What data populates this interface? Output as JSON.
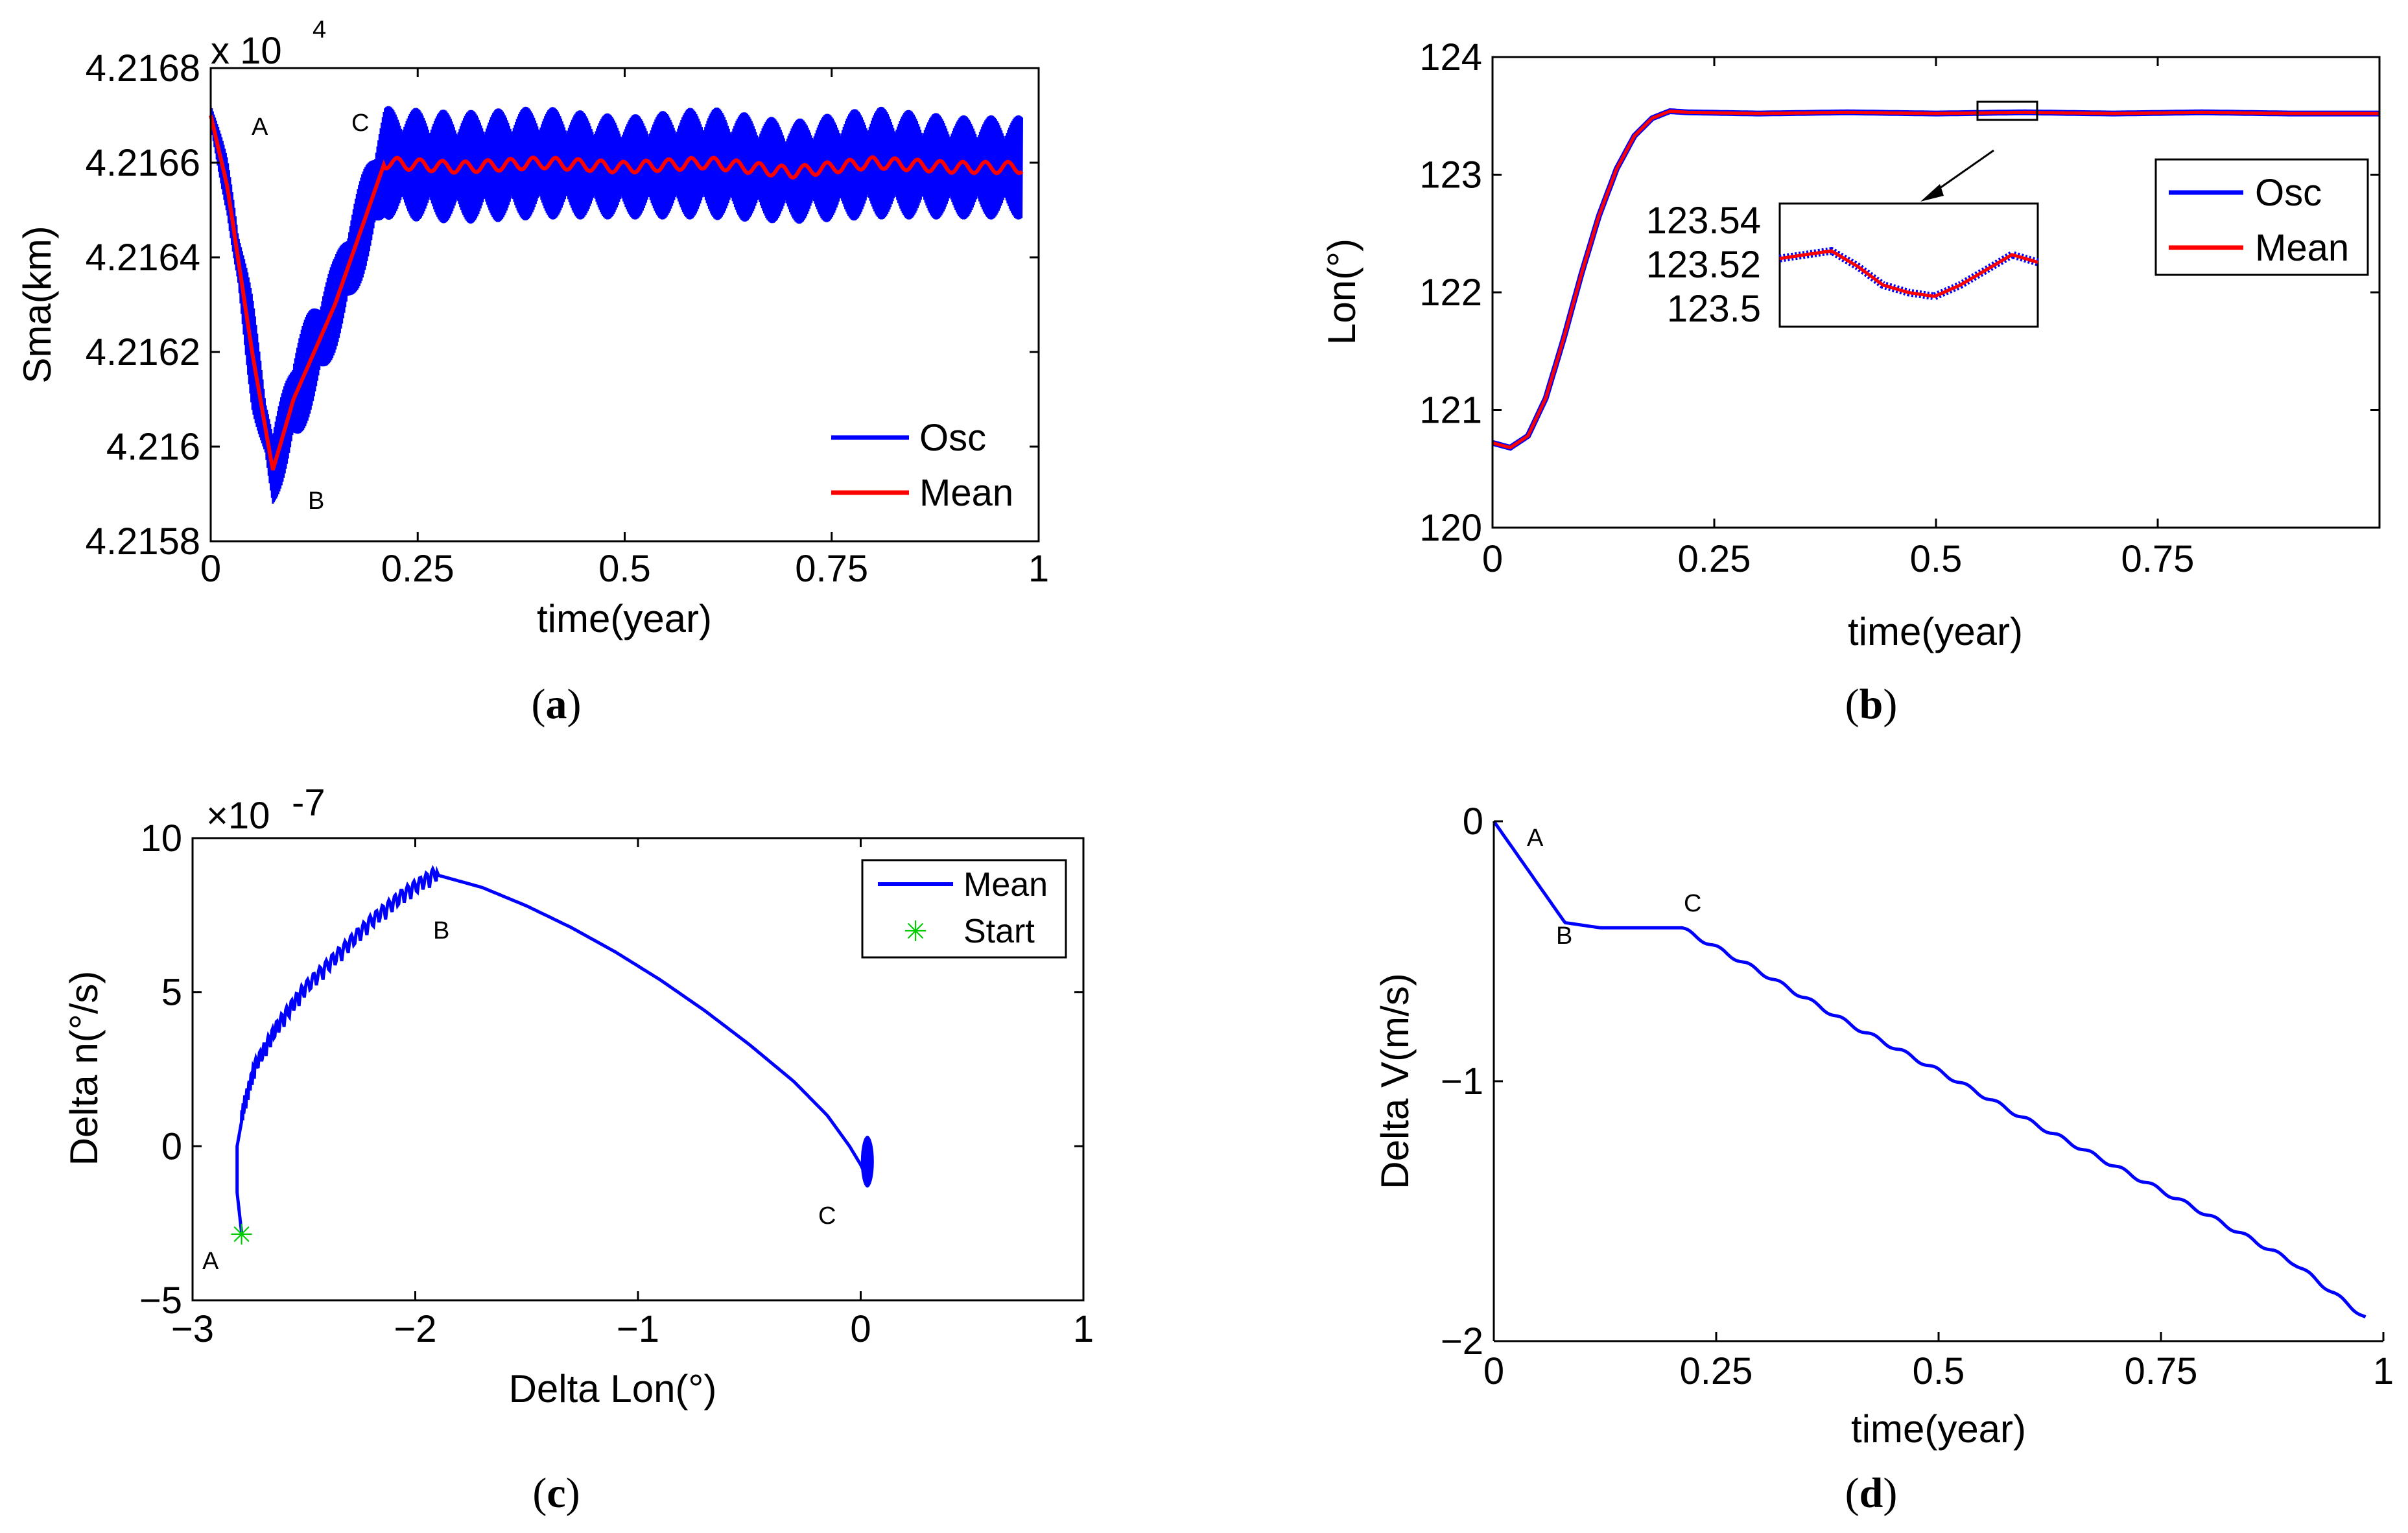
{
  "colors": {
    "osc": "#0000ff",
    "mean": "#ff0000",
    "start": "#00cc00",
    "axis": "#000000"
  },
  "captions": {
    "a": {
      "open": "(",
      "letter": "a",
      "close": ")"
    },
    "b": {
      "open": "(",
      "letter": "b",
      "close": ")"
    },
    "c": {
      "open": "(",
      "letter": "c",
      "close": ")"
    },
    "d": {
      "open": "(",
      "letter": "d",
      "close": ")"
    }
  },
  "chart_data": [
    {
      "id": "a",
      "type": "line",
      "xlabel": "time(year)",
      "ylabel": "Sma(km)",
      "multiplier": {
        "base": "x 10",
        "exp": "4"
      },
      "xlim": [
        0,
        1
      ],
      "ylim": [
        4.2158,
        4.2168
      ],
      "xticks": [
        0,
        0.25,
        0.5,
        0.75,
        1
      ],
      "xtick_labels": [
        "0",
        "0.25",
        "0.5",
        "0.75",
        "1"
      ],
      "yticks": [
        4.2158,
        4.216,
        4.2162,
        4.2164,
        4.2166,
        4.2168
      ],
      "ytick_labels": [
        "4.2158",
        "4.216",
        "4.2162",
        "4.2164",
        "4.2166",
        "4.2168"
      ],
      "legend": {
        "position": "bottom-right",
        "entries": [
          "Osc",
          "Mean"
        ]
      },
      "annotations": [
        {
          "text": "A",
          "x": 0.06,
          "y": 4.21673
        },
        {
          "text": "B",
          "x": 0.125,
          "y": 4.21584
        },
        {
          "text": "C",
          "x": 0.18,
          "y": 4.21674
        }
      ],
      "series": [
        {
          "name": "Mean",
          "x": [
            0,
            0.02,
            0.05,
            0.075,
            0.1,
            0.15,
            0.21,
            0.3,
            0.4,
            0.5,
            0.6,
            0.7,
            0.8,
            0.9,
            0.98
          ],
          "values": [
            4.2167,
            4.21655,
            4.2162,
            4.21595,
            4.2161,
            4.2163,
            4.2166,
            4.21659,
            4.2166,
            4.21659,
            4.2166,
            4.21658,
            4.2166,
            4.21659,
            4.21659
          ]
        },
        {
          "name": "Osc",
          "x": [
            0,
            0.02,
            0.05,
            0.075,
            0.1,
            0.15,
            0.21,
            0.3,
            0.4,
            0.5,
            0.6,
            0.7,
            0.8,
            0.9,
            0.98
          ],
          "values": [
            4.2167,
            4.21655,
            4.2162,
            4.21595,
            4.2161,
            4.2163,
            4.2166,
            4.21659,
            4.2166,
            4.21659,
            4.2166,
            4.21658,
            4.2166,
            4.21659,
            4.21659
          ],
          "amplitude": [
            4e-05,
            6e-05,
            0.00012,
            8e-05,
            0.00012,
            0.0001,
            0.00012,
            0.00012,
            0.00012,
            0.00011,
            0.00012,
            0.00011,
            0.00012,
            0.00011,
            0.00011
          ]
        }
      ]
    },
    {
      "id": "b",
      "type": "line",
      "xlabel": "time(year)",
      "ylabel": "Lon(°)",
      "xlim": [
        0,
        1
      ],
      "ylim": [
        120,
        124
      ],
      "xticks": [
        0,
        0.25,
        0.5,
        0.75
      ],
      "xtick_labels": [
        "0",
        "0.25",
        "0.5",
        "0.75"
      ],
      "yticks": [
        120,
        121,
        122,
        123,
        124
      ],
      "ytick_labels": [
        "120",
        "121",
        "122",
        "123",
        "124"
      ],
      "legend": {
        "position": "top-right",
        "entries": [
          "Osc",
          "Mean"
        ]
      },
      "series": [
        {
          "name": "Osc",
          "x": [
            0,
            0.02,
            0.04,
            0.06,
            0.08,
            0.1,
            0.12,
            0.14,
            0.16,
            0.18,
            0.2,
            0.22,
            0.3,
            0.4,
            0.5,
            0.6,
            0.7,
            0.8,
            0.9,
            1.0
          ],
          "values": [
            120.72,
            120.68,
            120.78,
            121.1,
            121.6,
            122.15,
            122.65,
            123.05,
            123.33,
            123.48,
            123.54,
            123.53,
            123.52,
            123.53,
            123.52,
            123.53,
            123.52,
            123.53,
            123.52,
            123.52
          ]
        },
        {
          "name": "Mean",
          "x": [
            0,
            0.02,
            0.04,
            0.06,
            0.08,
            0.1,
            0.12,
            0.14,
            0.16,
            0.18,
            0.2,
            0.22,
            0.3,
            0.4,
            0.5,
            0.6,
            0.7,
            0.8,
            0.9,
            1.0
          ],
          "values": [
            120.72,
            120.68,
            120.78,
            121.1,
            121.6,
            122.15,
            122.65,
            123.05,
            123.33,
            123.48,
            123.54,
            123.53,
            123.52,
            123.53,
            123.52,
            123.53,
            123.52,
            123.53,
            123.52,
            123.52
          ]
        }
      ],
      "inset": {
        "xlim": [
          0.55,
          0.6
        ],
        "ylim": [
          123.49,
          123.555
        ],
        "ytick_labels": [
          "123.54",
          "123.52",
          "123.5"
        ],
        "yticks": [
          123.54,
          123.52,
          123.5
        ],
        "x": [
          0.55,
          0.56,
          0.565,
          0.57,
          0.575,
          0.58,
          0.585,
          0.59,
          0.595,
          0.6
        ],
        "values": [
          123.526,
          123.53,
          123.522,
          123.512,
          123.508,
          123.506,
          123.512,
          123.52,
          123.528,
          123.524
        ]
      }
    },
    {
      "id": "c",
      "type": "line",
      "xlabel": "Delta Lon(°)",
      "ylabel": "Delta n(°/s)",
      "multiplier": {
        "base": "×10",
        "exp": "-7"
      },
      "xlim": [
        -3,
        1
      ],
      "ylim": [
        -5,
        10
      ],
      "xticks": [
        -3,
        -2,
        -1,
        0,
        1
      ],
      "xtick_labels": [
        "−3",
        "−2",
        "−1",
        "0",
        "1"
      ],
      "yticks": [
        -5,
        0,
        5,
        10
      ],
      "ytick_labels": [
        "−5",
        "0",
        "5",
        "10"
      ],
      "legend": {
        "position": "top-right",
        "entries": [
          "Mean",
          "Start"
        ]
      },
      "annotations": [
        {
          "text": "A",
          "x": -2.93,
          "y": -3.9
        },
        {
          "text": "B",
          "x": -1.85,
          "y": 7.0
        },
        {
          "text": "C",
          "x": -0.12,
          "y": -2.6
        }
      ],
      "series": [
        {
          "name": "Mean",
          "x": [
            -2.78,
            -2.8,
            -2.8,
            -2.77,
            -2.72,
            -2.62,
            -2.5,
            -2.35,
            -2.2,
            -2.05,
            -1.9,
            -1.7,
            -1.5,
            -1.3,
            -1.1,
            -0.9,
            -0.7,
            -0.5,
            -0.3,
            -0.15,
            -0.05,
            0.0,
            0.02,
            0.03
          ],
          "values": [
            -2.8,
            -1.5,
            0.0,
            1.2,
            2.5,
            3.8,
            5.0,
            6.1,
            7.2,
            8.1,
            8.8,
            8.4,
            7.8,
            7.1,
            6.3,
            5.4,
            4.4,
            3.3,
            2.1,
            1.0,
            0.0,
            -0.6,
            -0.9,
            -1.0
          ]
        },
        {
          "name": "Start",
          "x": [
            -2.78
          ],
          "values": [
            -2.85
          ]
        }
      ]
    },
    {
      "id": "d",
      "type": "line",
      "xlabel": "time(year)",
      "ylabel": "Delta V(m/s)",
      "xlim": [
        0,
        1
      ],
      "ylim": [
        -2,
        0
      ],
      "xticks": [
        0,
        0.25,
        0.5,
        0.75,
        1
      ],
      "xtick_labels": [
        "0",
        "0.25",
        "0.5",
        "0.75",
        "1"
      ],
      "yticks": [
        -2,
        -1,
        0
      ],
      "ytick_labels": [
        "−2",
        "−1",
        "0"
      ],
      "annotations": [
        {
          "text": "A",
          "x": 0.045,
          "y": -0.05
        },
        {
          "text": "B",
          "x": 0.08,
          "y": -0.47
        },
        {
          "text": "C",
          "x": 0.225,
          "y": -0.33
        }
      ],
      "series": [
        {
          "name": "Delta V",
          "x": [
            0,
            0.08,
            0.12,
            0.21,
            0.3,
            0.4,
            0.5,
            0.6,
            0.7,
            0.8,
            0.9,
            0.98
          ],
          "values": [
            0,
            -0.39,
            -0.41,
            -0.41,
            -0.58,
            -0.78,
            -0.96,
            -1.15,
            -1.33,
            -1.51,
            -1.7,
            -1.91
          ]
        }
      ]
    }
  ]
}
